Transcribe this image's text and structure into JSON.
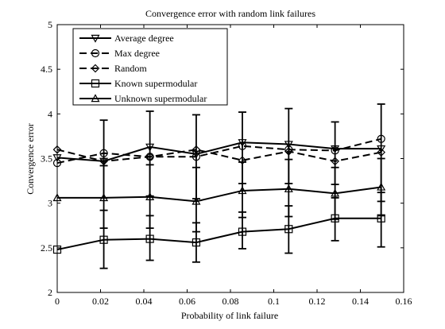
{
  "chart_data": {
    "type": "line",
    "title": "Convergence error with random link failures",
    "xlabel": "Probability of link failure",
    "ylabel": "Convergence error",
    "xlim": [
      0,
      0.16
    ],
    "ylim": [
      2,
      5
    ],
    "xticks": [
      0,
      0.02,
      0.04,
      0.06,
      0.08,
      0.1,
      0.12,
      0.14,
      0.16
    ],
    "xtick_labels": [
      "0",
      "0.02",
      "0.04",
      "0.06",
      "0.08",
      "0.1",
      "0.12",
      "0.14",
      "0.16"
    ],
    "yticks": [
      2,
      2.5,
      3,
      3.5,
      4,
      4.5,
      5
    ],
    "ytick_labels": [
      "2",
      "2.5",
      "3",
      "3.5",
      "4",
      "4.5",
      "5"
    ],
    "grid": false,
    "legend_position": "top-left",
    "x": [
      0,
      0.0215,
      0.0428,
      0.0642,
      0.0855,
      0.1069,
      0.1283,
      0.1496
    ],
    "series": [
      {
        "name": "Average degree",
        "marker": "triangle-down",
        "linestyle": "solid",
        "values": [
          3.51,
          3.47,
          3.63,
          3.55,
          3.68,
          3.66,
          3.61,
          3.61
        ]
      },
      {
        "name": "Max degree",
        "marker": "circle",
        "linestyle": "dashed",
        "values": [
          3.45,
          3.56,
          3.52,
          3.52,
          3.64,
          3.6,
          3.59,
          3.72
        ]
      },
      {
        "name": "Random",
        "marker": "diamond",
        "linestyle": "dashed",
        "values": [
          3.6,
          3.47,
          3.52,
          3.6,
          3.48,
          3.58,
          3.47,
          3.57
        ]
      },
      {
        "name": "Known supermodular",
        "marker": "square",
        "linestyle": "solid",
        "values": [
          2.48,
          2.59,
          2.6,
          2.56,
          2.68,
          2.71,
          2.83,
          2.83
        ]
      },
      {
        "name": "Unknown supermodular",
        "marker": "triangle-up",
        "linestyle": "solid",
        "values": [
          3.06,
          3.06,
          3.07,
          3.02,
          3.14,
          3.16,
          3.11,
          3.18
        ]
      }
    ],
    "error_bars": [
      {
        "x": 0.0215,
        "low": 3.06,
        "high": 3.93
      },
      {
        "x": 0.0428,
        "low": 3.08,
        "high": 4.03
      },
      {
        "x": 0.0642,
        "low": 3.05,
        "high": 3.99
      },
      {
        "x": 0.0855,
        "low": 3.22,
        "high": 4.02
      },
      {
        "x": 0.1069,
        "low": 3.22,
        "high": 4.06
      },
      {
        "x": 0.1283,
        "low": 3.21,
        "high": 3.91
      },
      {
        "x": 0.1496,
        "low": 3.02,
        "high": 4.11
      },
      {
        "x": 0.0215,
        "low": 2.72,
        "high": 3.42
      },
      {
        "x": 0.0428,
        "low": 2.72,
        "high": 3.43
      },
      {
        "x": 0.0642,
        "low": 2.68,
        "high": 3.4
      },
      {
        "x": 0.0855,
        "low": 2.84,
        "high": 3.46
      },
      {
        "x": 0.1069,
        "low": 2.85,
        "high": 3.49
      },
      {
        "x": 0.1283,
        "low": 2.82,
        "high": 3.4
      },
      {
        "x": 0.1496,
        "low": 2.86,
        "high": 3.5
      },
      {
        "x": 0.0215,
        "low": 2.27,
        "high": 2.92
      },
      {
        "x": 0.0428,
        "low": 2.36,
        "high": 2.86
      },
      {
        "x": 0.0642,
        "low": 2.34,
        "high": 2.78
      },
      {
        "x": 0.0855,
        "low": 2.49,
        "high": 2.9
      },
      {
        "x": 0.1069,
        "low": 2.44,
        "high": 2.97
      },
      {
        "x": 0.1283,
        "low": 2.58,
        "high": 3.06
      },
      {
        "x": 0.1496,
        "low": 2.51,
        "high": 3.12
      }
    ]
  }
}
